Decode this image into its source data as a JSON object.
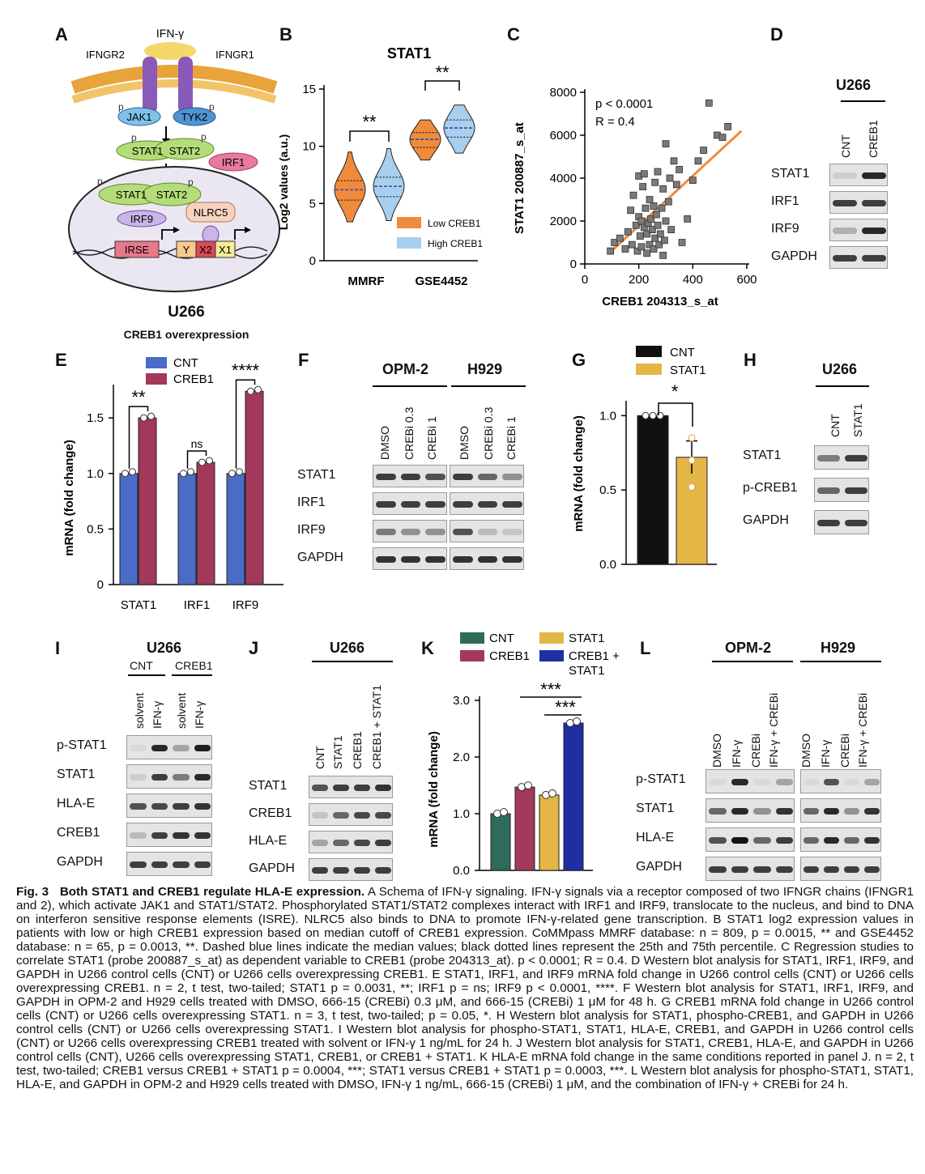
{
  "panel_labels": [
    "A",
    "B",
    "C",
    "D",
    "E",
    "F",
    "G",
    "H",
    "I",
    "J",
    "K",
    "L"
  ],
  "panelA": {
    "ligand": "IFN-γ",
    "receptors": [
      "IFNGR2",
      "IFNGR1"
    ],
    "kinases": [
      "JAK1",
      "TYK2"
    ],
    "p_mark": "p",
    "cytoplasm": [
      "STAT1",
      "STAT2",
      "IRF1"
    ],
    "nucleus": [
      "STAT1",
      "STAT2",
      "IRF9",
      "NLRC5"
    ],
    "dna_elements": [
      "IRSE",
      "Y",
      "X2",
      "X1"
    ],
    "colors": {
      "ligand": "#f5d86b",
      "receptor": "#8a5ab8",
      "jak": "#7ec2ea",
      "tyk": "#4f93d0",
      "stat": "#b4dc78",
      "irf1": "#e87aa0",
      "irf9": "#c9b5e8",
      "nlrc5": "#f6d2c0",
      "irse": "#e8788a",
      "y": "#f7c98c",
      "x2": "#d94a5a",
      "x1": "#f7ec9a"
    }
  },
  "panelB": {
    "title": "STAT1",
    "ylabel": "Log2 values (a.u.)",
    "yticks": [
      "15",
      "10",
      "5",
      "0"
    ],
    "groups": [
      "MMRF",
      "GSE4452"
    ],
    "sig": [
      "**",
      "**"
    ],
    "legend": [
      "Low CREB1",
      "High CREB1"
    ],
    "colors": {
      "low": "#f08a3c",
      "high": "#a9cfee"
    }
  },
  "panelC": {
    "stats": [
      "p < 0.0001",
      "R = 0.4"
    ],
    "xlabel": "CREB1 204313_s_at",
    "ylabel": "STAT1 200887_s_at",
    "xticks": [
      "0",
      "200",
      "400",
      "600"
    ],
    "yticks": [
      "8000",
      "6000",
      "4000",
      "2000",
      "0"
    ]
  },
  "panelD": {
    "cell": "U266",
    "lanes": [
      "CNT",
      "CREB1"
    ],
    "rows": [
      "STAT1",
      "IRF1",
      "IRF9",
      "GAPDH"
    ]
  },
  "panelE": {
    "header": [
      "U266",
      "CREB1 overexpression"
    ],
    "legend": [
      "CNT",
      "CREB1"
    ],
    "ylabel": "mRNA (fold change)",
    "yticks": [
      "1.5",
      "1.0",
      "0.5",
      "0"
    ],
    "groups": [
      "STAT1",
      "IRF1",
      "IRF9"
    ],
    "sig": [
      "**",
      "ns",
      "****"
    ],
    "colors": {
      "cnt": "#4a6cc7",
      "creb1": "#a3395a"
    }
  },
  "panelF": {
    "cells": [
      "OPM-2",
      "H929"
    ],
    "lanes": [
      "DMSO",
      "CREBi 0.3",
      "CREBi 1"
    ],
    "rows": [
      "STAT1",
      "IRF1",
      "IRF9",
      "GAPDH"
    ]
  },
  "panelG": {
    "legend": [
      "CNT",
      "STAT1"
    ],
    "ylabel": "mRNA (fold change)",
    "yticks": [
      "1.0",
      "0.5",
      "0.0"
    ],
    "sig": "*",
    "colors": {
      "cnt": "#111111",
      "stat1": "#e3b645"
    }
  },
  "panelH": {
    "cell": "U266",
    "lanes": [
      "CNT",
      "STAT1"
    ],
    "rows": [
      "STAT1",
      "p-CREB1",
      "GAPDH"
    ]
  },
  "panelI": {
    "cell": "U266",
    "groups": [
      "CNT",
      "CREB1"
    ],
    "lanes": [
      "solvent",
      "IFN-γ",
      "solvent",
      "IFN-γ"
    ],
    "rows": [
      "p-STAT1",
      "STAT1",
      "HLA-E",
      "CREB1",
      "GAPDH"
    ]
  },
  "panelJ": {
    "cell": "U266",
    "lanes": [
      "CNT",
      "STAT1",
      "CREB1",
      "CREB1 + STAT1"
    ],
    "rows": [
      "STAT1",
      "CREB1",
      "HLA-E",
      "GAPDH"
    ]
  },
  "panelK": {
    "legend": [
      "CNT",
      "STAT1",
      "CREB1",
      "CREB1 +",
      "STAT1"
    ],
    "ylabel": "mRNA (fold change)",
    "yticks": [
      "3.0",
      "2.0",
      "1.0",
      "0.0"
    ],
    "sig": [
      "***",
      "***"
    ],
    "colors": {
      "cnt": "#2f6b5a",
      "creb1": "#a3395a",
      "stat1": "#e3b645",
      "both": "#1f2fa0"
    }
  },
  "panelL": {
    "cells": [
      "OPM-2",
      "H929"
    ],
    "lanes": [
      "DMSO",
      "IFN-γ",
      "CREBi",
      "IFN-γ + CREBi"
    ],
    "rows": [
      "p-STAT1",
      "STAT1",
      "HLA-E",
      "GAPDH"
    ]
  },
  "caption": {
    "fig": "Fig. 3",
    "title": "Both STAT1 and CREB1 regulate HLA-E expression.",
    "text": " A Schema of IFN-γ signaling. IFN-γ signals via a receptor composed of two IFNGR chains (IFNGR1 and 2), which activate JAK1 and STAT1/STAT2. Phosphorylated STAT1/STAT2 complexes interact with IRF1 and IRF9, translocate to the nucleus, and bind to DNA on interferon sensitive response elements (ISRE). NLRC5 also binds to DNA to promote IFN-γ-related gene transcription. B STAT1 log2 expression values in patients with low or high CREB1 expression based on median cutoff of CREB1 expression. CoMMpass MMRF database: n = 809, p = 0.0015, ** and GSE4452 database: n = 65, p = 0.0013, **. Dashed blue lines indicate the median values; black dotted lines represent the 25th and 75th percentile. C Regression studies to correlate STAT1 (probe 200887_s_at) as dependent variable to CREB1 (probe 204313_at). p < 0.0001; R = 0.4. D Western blot analysis for STAT1, IRF1, IRF9, and GAPDH in U266 control cells (CNT) or U266 cells overexpressing CREB1. E STAT1, IRF1, and IRF9 mRNA fold change in U266 control cells (CNT) or U266 cells overexpressing CREB1. n = 2, t test, two-tailed; STAT1 p = 0.0031, **; IRF1 p = ns; IRF9 p < 0.0001, ****. F Western blot analysis for STAT1, IRF1, IRF9, and GAPDH in OPM-2 and H929 cells treated with DMSO, 666-15 (CREBi) 0.3 μM, and 666-15 (CREBi) 1 μM for 48 h. G CREB1 mRNA fold change in U266 control cells (CNT) or U266 cells overexpressing STAT1. n = 3, t test, two-tailed; p = 0.05, *. H Western blot analysis for STAT1, phospho-CREB1, and GAPDH in U266 control cells (CNT) or U266 cells overexpressing STAT1. I Western blot analysis for phospho-STAT1, STAT1, HLA-E, CREB1, and GAPDH in U266 control cells (CNT) or U266 cells overexpressing CREB1 treated with solvent or IFN-γ 1 ng/mL for 24 h. J Western blot analysis for STAT1, CREB1, HLA-E, and GAPDH in U266 control cells (CNT), U266 cells overexpressing STAT1, CREB1, or CREB1 + STAT1. K HLA-E mRNA fold change in the same conditions reported in panel J. n = 2, t test, two-tailed; CREB1 versus CREB1 + STAT1 p = 0.0004, ***; STAT1 versus CREB1 + STAT1 p = 0.0003, ***. L Western blot analysis for phospho-STAT1, STAT1, HLA-E, and GAPDH in OPM-2 and H929 cells treated with DMSO, IFN-γ 1 ng/mL, 666-15 (CREBi) 1 μM, and the combination of IFN-γ + CREBi for 24 h."
  },
  "chart_data": [
    {
      "type": "violin",
      "title": "STAT1",
      "ylabel": "Log2 values (a.u.)",
      "ylim": [
        0,
        15
      ],
      "categories": [
        "MMRF",
        "GSE4452"
      ],
      "series": [
        {
          "name": "Low CREB1",
          "median": [
            6.2,
            10.6
          ],
          "q1": [
            5.3,
            9.9
          ],
          "q3": [
            7.0,
            11.2
          ],
          "min": [
            3.4,
            8.8
          ],
          "max": [
            9.5,
            12.3
          ]
        },
        {
          "name": "High CREB1",
          "median": [
            6.5,
            11.6
          ],
          "q1": [
            5.6,
            10.8
          ],
          "q3": [
            7.3,
            12.3
          ],
          "min": [
            3.5,
            9.4
          ],
          "max": [
            9.8,
            13.6
          ]
        }
      ]
    },
    {
      "type": "scatter",
      "xlabel": "CREB1 204313_s_at",
      "ylabel": "STAT1 200887_s_at",
      "xlim": [
        0,
        600
      ],
      "ylim": [
        0,
        8000
      ],
      "x": [
        95,
        110,
        130,
        150,
        160,
        170,
        175,
        180,
        190,
        195,
        200,
        200,
        205,
        210,
        210,
        215,
        220,
        220,
        225,
        230,
        230,
        235,
        240,
        240,
        245,
        250,
        255,
        255,
        260,
        260,
        265,
        270,
        270,
        275,
        280,
        285,
        290,
        290,
        295,
        300,
        300,
        310,
        315,
        320,
        330,
        340,
        350,
        360,
        380,
        400,
        420,
        440,
        460,
        490,
        510,
        530
      ],
      "y": [
        600,
        1000,
        1200,
        700,
        1500,
        2500,
        900,
        3200,
        1800,
        600,
        2200,
        4100,
        1300,
        800,
        2000,
        3600,
        1700,
        4200,
        2600,
        1400,
        500,
        1900,
        3000,
        900,
        2100,
        1600,
        2700,
        700,
        3800,
        1200,
        2300,
        4300,
        1800,
        900,
        1400,
        2600,
        3500,
        400,
        1100,
        2000,
        5600,
        2900,
        4000,
        1600,
        4800,
        3700,
        4400,
        1000,
        2100,
        3900,
        4800,
        5300,
        7500,
        6000,
        5900,
        6400
      ]
    },
    {
      "type": "bar",
      "ylabel": "mRNA (fold change)",
      "ylim": [
        0,
        1.8
      ],
      "categories": [
        "STAT1",
        "IRF1",
        "IRF9"
      ],
      "series": [
        {
          "name": "CNT",
          "values": [
            1.0,
            1.0,
            1.0
          ]
        },
        {
          "name": "CREB1",
          "values": [
            1.5,
            1.1,
            1.74
          ]
        }
      ]
    },
    {
      "type": "bar",
      "ylabel": "mRNA (fold change)",
      "ylim": [
        0,
        1.1
      ],
      "categories": [
        "CNT",
        "STAT1"
      ],
      "values": [
        1.0,
        0.72
      ],
      "errors": [
        0.0,
        0.11
      ]
    },
    {
      "type": "bar",
      "ylabel": "mRNA (fold change)",
      "ylim": [
        0,
        3.0
      ],
      "categories": [
        "CNT",
        "CREB1",
        "STAT1",
        "CREB1 + STAT1"
      ],
      "values": [
        1.0,
        1.47,
        1.33,
        2.6
      ]
    }
  ]
}
